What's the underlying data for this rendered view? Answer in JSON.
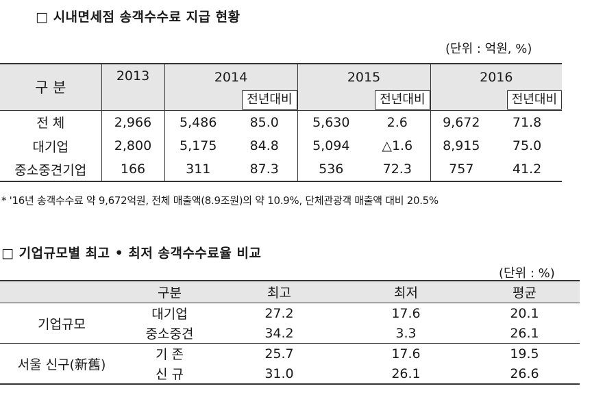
{
  "table1": {
    "title": "□ 시내면세점 송객수수료 지급 현황",
    "unit": "(단위 : 억원, %)",
    "header": {
      "label": "구 분",
      "years": [
        "2013",
        "2014",
        "2015",
        "2016"
      ],
      "sub_label": "전년대비"
    },
    "rows": [
      {
        "label": "전 체",
        "y2013": "2,966",
        "y2014": "5,486",
        "y2014_yoy": "85.0",
        "y2015": "5,630",
        "y2015_yoy": "2.6",
        "y2016": "9,672",
        "y2016_yoy": "71.8"
      },
      {
        "label": "대기업",
        "y2013": "2,800",
        "y2014": "5,175",
        "y2014_yoy": "84.8",
        "y2015": "5,094",
        "y2015_yoy": "△1.6",
        "y2016": "8,915",
        "y2016_yoy": "75.0"
      },
      {
        "label": "중소중견기업",
        "y2013": "166",
        "y2014": "311",
        "y2014_yoy": "87.3",
        "y2015": "536",
        "y2015_yoy": "72.3",
        "y2016": "757",
        "y2016_yoy": "41.2"
      }
    ],
    "footnote": "* '16년 송객수수료 약 9,672억원, 전체 매출액(8.9조원)의 약 10.9%, 단체관광객 매출액 대비 20.5%"
  },
  "table2": {
    "title": "□ 기업규모별 최고 • 최저 송객수수료율 비교",
    "unit": "(단위 : %)",
    "header": [
      "구분",
      "최고",
      "최저",
      "평균"
    ],
    "groups": [
      {
        "label": "기업규모",
        "rows": [
          {
            "label": "대기업",
            "max": "27.2",
            "min": "17.6",
            "avg": "20.1"
          },
          {
            "label": "중소중견",
            "max": "34.2",
            "min": "3.3",
            "avg": "26.1"
          }
        ]
      },
      {
        "label": "서울 신구(新舊)",
        "rows": [
          {
            "label": "기 존",
            "max": "25.7",
            "min": "17.6",
            "avg": "19.5"
          },
          {
            "label": "신 규",
            "max": "31.0",
            "min": "26.1",
            "avg": "26.6"
          }
        ]
      }
    ]
  }
}
